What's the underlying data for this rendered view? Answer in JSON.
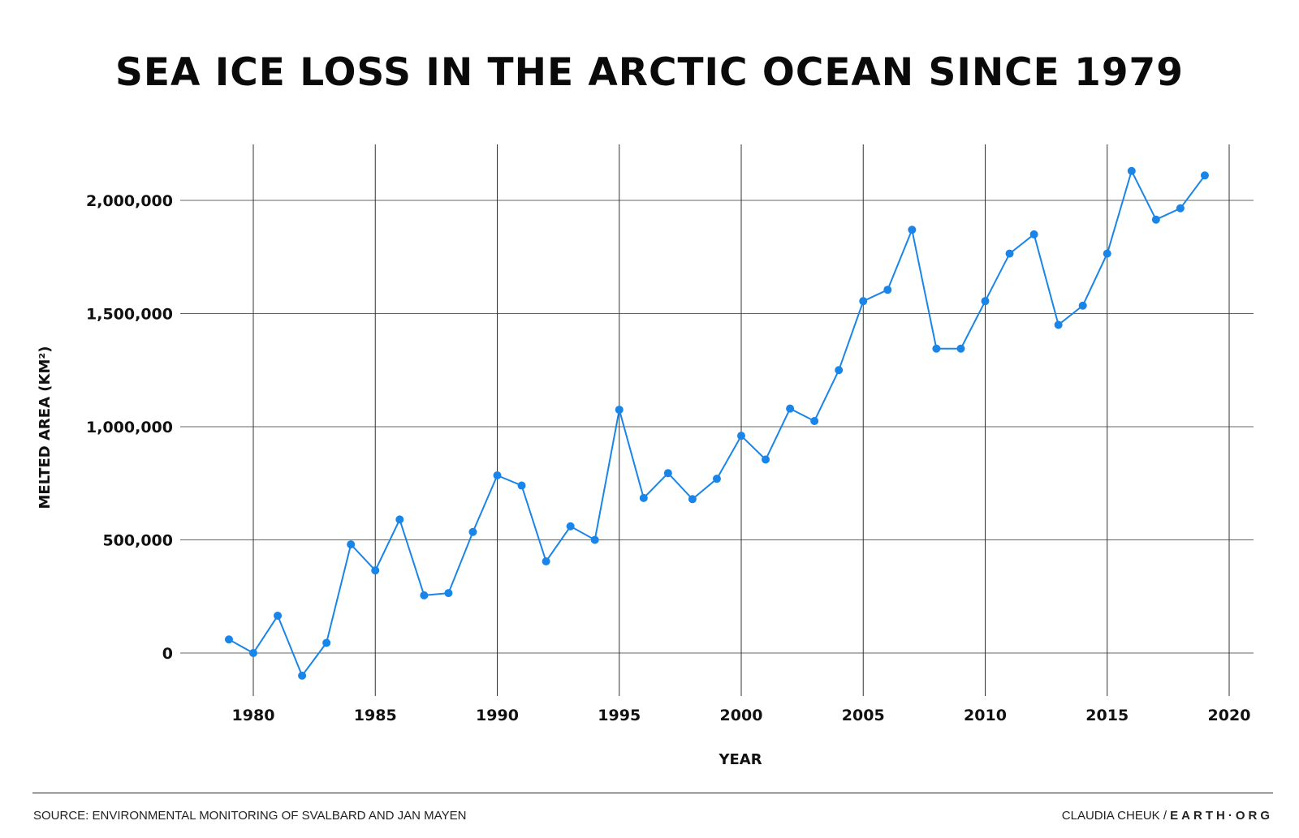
{
  "title": "SEA ICE LOSS IN THE ARCTIC OCEAN SINCE 1979",
  "footer": {
    "source": "SOURCE: ENVIRONMENTAL MONITORING OF SVALBARD AND JAN MAYEN",
    "author": "CLAUDIA CHEUK /",
    "brand": "EARTH·ORG"
  },
  "colors": {
    "series": "#1a85e8",
    "grid": "#333333"
  },
  "chart_data": {
    "type": "line",
    "title": "SEA ICE LOSS IN THE ARCTIC OCEAN SINCE 1979",
    "xlabel": "YEAR",
    "ylabel": "MELTED AREA (KM²)",
    "xlim": [
      1979,
      2020
    ],
    "ylim": [
      -200000,
      2250000
    ],
    "x_ticks": [
      1980,
      1985,
      1990,
      1995,
      2000,
      2005,
      2010,
      2015,
      2020
    ],
    "y_ticks": [
      0,
      500000,
      1000000,
      1500000,
      2000000
    ],
    "y_tick_labels": [
      "0",
      "500,000",
      "1,000,000",
      "1,500,000",
      "2,000,000"
    ],
    "grid": true,
    "legend": "none",
    "x": [
      1979,
      1980,
      1981,
      1982,
      1983,
      1984,
      1985,
      1986,
      1987,
      1988,
      1989,
      1990,
      1991,
      1992,
      1993,
      1994,
      1995,
      1996,
      1997,
      1998,
      1999,
      2000,
      2001,
      2002,
      2003,
      2004,
      2005,
      2006,
      2007,
      2008,
      2009,
      2010,
      2011,
      2012,
      2013,
      2014,
      2015,
      2016,
      2017,
      2018,
      2019
    ],
    "series": [
      {
        "values": [
          60000,
          0,
          165000,
          -100000,
          45000,
          480000,
          365000,
          590000,
          255000,
          265000,
          535000,
          785000,
          740000,
          405000,
          560000,
          500000,
          1075000,
          685000,
          795000,
          680000,
          770000,
          960000,
          855000,
          1080000,
          1025000,
          1250000,
          1555000,
          1605000,
          1870000,
          1345000,
          1345000,
          1555000,
          1765000,
          1850000,
          1450000,
          1535000,
          1765000,
          2130000,
          1915000,
          1965000,
          2110000
        ]
      }
    ]
  }
}
